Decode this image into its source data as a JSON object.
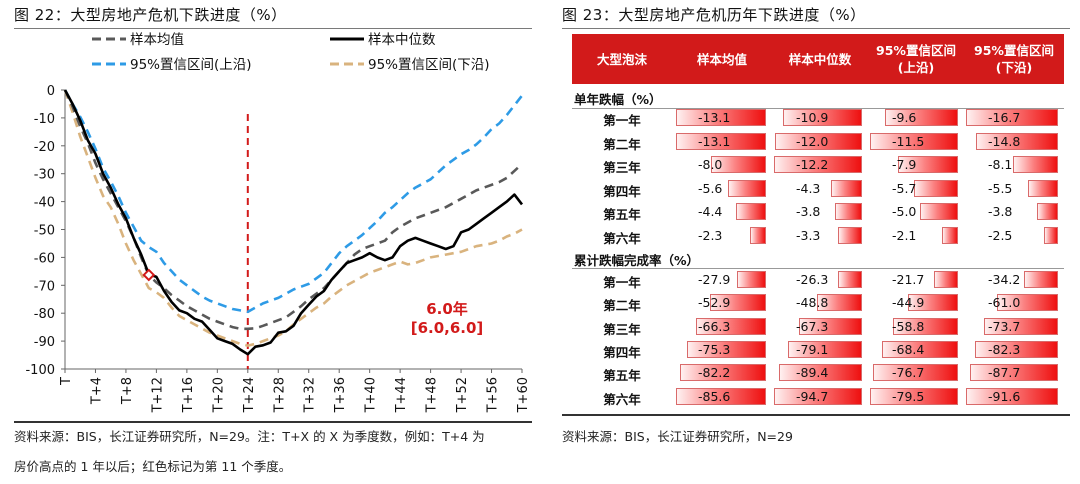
{
  "left": {
    "title": "图 22：大型房地产危机下跌进度（%）",
    "source_line1": "资料来源：BIS，长江证券研究所，N=29。注：T+X 的 X 为季度数，例如：T+4 为",
    "source_line2": "房价高点的 1 年以后；红色标记为第 11 个季度。",
    "annotation_line1": "6.0年",
    "annotation_line2": "[6.0,6.0]"
  },
  "chart_data": {
    "type": "line",
    "title": "大型房地产危机下跌进度（%）",
    "xlabel": "",
    "ylabel": "",
    "xlim": [
      0,
      60
    ],
    "ylim": [
      -100,
      0
    ],
    "yticks": [
      0,
      -10,
      -20,
      -30,
      -40,
      -50,
      -60,
      -70,
      -80,
      -90,
      -100
    ],
    "xtick_labels": [
      "T",
      "T+4",
      "T+8",
      "T+12",
      "T+16",
      "T+20",
      "T+24",
      "T+28",
      "T+32",
      "T+36",
      "T+40",
      "T+44",
      "T+48",
      "T+52",
      "T+56",
      "T+60"
    ],
    "xtick_values": [
      0,
      4,
      8,
      12,
      16,
      20,
      24,
      28,
      32,
      36,
      40,
      44,
      48,
      52,
      56,
      60
    ],
    "vline_x": 24,
    "marker": {
      "x": 11,
      "y": -66.3
    },
    "series": [
      {
        "name": "样本均值",
        "style": "dash",
        "color": "#595959",
        "x": [
          0,
          1,
          2,
          3,
          4,
          5,
          6,
          7,
          8,
          9,
          10,
          11,
          12,
          13,
          14,
          15,
          16,
          17,
          18,
          19,
          20,
          21,
          22,
          23,
          24,
          25,
          26,
          27,
          28,
          29,
          30,
          31,
          32,
          33,
          34,
          35,
          36,
          37,
          38,
          39,
          40,
          41,
          42,
          43,
          44,
          45,
          46,
          47,
          48,
          49,
          50,
          51,
          52,
          53,
          54,
          55,
          56,
          57,
          58,
          59,
          60
        ],
        "y": [
          0,
          -6,
          -13.1,
          -19,
          -26.2,
          -32,
          -37,
          -42,
          -47,
          -53,
          -60,
          -66.3,
          -69,
          -71,
          -73.5,
          -75.5,
          -77.5,
          -79,
          -80.5,
          -82,
          -83,
          -84,
          -85,
          -85.6,
          -85.6,
          -85.4,
          -84.5,
          -83.5,
          -82.5,
          -81.5,
          -79.5,
          -77.5,
          -75,
          -73,
          -71,
          -68,
          -65,
          -62,
          -59,
          -57,
          -56,
          -55,
          -54,
          -51,
          -49,
          -47.5,
          -46,
          -45,
          -44,
          -43,
          -42,
          -40.5,
          -39,
          -37.5,
          -36,
          -35,
          -34,
          -33,
          -31.5,
          -29,
          -26.5
        ]
      },
      {
        "name": "样本中位数",
        "style": "solid",
        "color": "#000000",
        "x": [
          0,
          1,
          2,
          3,
          4,
          5,
          6,
          7,
          8,
          9,
          10,
          11,
          12,
          13,
          14,
          15,
          16,
          17,
          18,
          19,
          20,
          21,
          22,
          23,
          24,
          25,
          26,
          27,
          28,
          29,
          30,
          31,
          32,
          33,
          34,
          35,
          36,
          37,
          38,
          39,
          40,
          41,
          42,
          43,
          44,
          45,
          46,
          47,
          48,
          49,
          50,
          51,
          52,
          53,
          54,
          55,
          56,
          57,
          58,
          59,
          60
        ],
        "y": [
          0,
          -5,
          -10.9,
          -18,
          -22.9,
          -30,
          -35,
          -41,
          -46,
          -53,
          -59,
          -66,
          -67,
          -72,
          -76,
          -79,
          -80,
          -82,
          -83,
          -86,
          -89,
          -90,
          -91,
          -93,
          -94.7,
          -92,
          -91.5,
          -90.5,
          -87,
          -86.5,
          -84.5,
          -80,
          -77,
          -74,
          -72,
          -68,
          -65,
          -62,
          -61,
          -60,
          -58.5,
          -60,
          -61,
          -60,
          -56,
          -54,
          -53,
          -54,
          -55,
          -56,
          -57,
          -56,
          -51,
          -50,
          -48,
          -46,
          -44,
          -42,
          -40,
          -37.5,
          -41
        ]
      },
      {
        "name": "95%置信区间(上沿)",
        "style": "dash",
        "color": "#2e9be6",
        "x": [
          0,
          1,
          2,
          3,
          4,
          5,
          6,
          7,
          8,
          9,
          10,
          11,
          12,
          13,
          14,
          15,
          16,
          17,
          18,
          19,
          20,
          21,
          22,
          23,
          24,
          25,
          26,
          27,
          28,
          29,
          30,
          31,
          32,
          33,
          34,
          35,
          36,
          37,
          38,
          39,
          40,
          41,
          42,
          43,
          44,
          45,
          46,
          47,
          48,
          49,
          50,
          51,
          52,
          53,
          54,
          55,
          56,
          57,
          58,
          59,
          60
        ],
        "y": [
          0,
          -5,
          -9.6,
          -15,
          -21.1,
          -28,
          -32.8,
          -38,
          -44,
          -49,
          -54,
          -56.3,
          -58,
          -62,
          -65,
          -68,
          -70,
          -72,
          -74,
          -75.5,
          -76.5,
          -77.5,
          -78.5,
          -79,
          -79.5,
          -78,
          -76.5,
          -75.5,
          -74.5,
          -73,
          -71.5,
          -70.5,
          -69.5,
          -67.5,
          -65.5,
          -62,
          -58.5,
          -56,
          -54,
          -52,
          -49.5,
          -47,
          -44,
          -42,
          -39.5,
          -37,
          -35,
          -33.5,
          -32,
          -29.5,
          -27,
          -25,
          -23,
          -21.5,
          -19.5,
          -17,
          -14,
          -12,
          -9,
          -5.5,
          -2
        ]
      },
      {
        "name": "95%置信区间(下沿)",
        "style": "dash",
        "color": "#d9b37e",
        "x": [
          0,
          1,
          2,
          3,
          4,
          5,
          6,
          7,
          8,
          9,
          10,
          11,
          12,
          13,
          14,
          15,
          16,
          17,
          18,
          19,
          20,
          21,
          22,
          23,
          24,
          25,
          26,
          27,
          28,
          29,
          30,
          31,
          32,
          33,
          34,
          35,
          36,
          37,
          38,
          39,
          40,
          41,
          42,
          43,
          44,
          45,
          46,
          47,
          48,
          49,
          50,
          51,
          52,
          53,
          54,
          55,
          56,
          57,
          58,
          59,
          60
        ],
        "y": [
          0,
          -8,
          -16.7,
          -24,
          -31.5,
          -38,
          -42,
          -48,
          -55,
          -61,
          -66,
          -71,
          -72.5,
          -74.5,
          -78,
          -81,
          -82.5,
          -84,
          -85.5,
          -87,
          -88,
          -89,
          -90,
          -91,
          -91.6,
          -91,
          -90,
          -89,
          -88,
          -86.5,
          -84,
          -82,
          -80,
          -78,
          -76.5,
          -74,
          -72,
          -70,
          -68.5,
          -67,
          -65.5,
          -64.5,
          -63.5,
          -62.5,
          -61.5,
          -62.5,
          -62,
          -61,
          -60,
          -59.5,
          -59,
          -58.5,
          -58,
          -57,
          -56,
          -55.5,
          -55,
          -54,
          -52.5,
          -51.5,
          -50
        ]
      }
    ]
  },
  "right": {
    "title": "图 23：大型房地产危机历年下跌进度（%）",
    "source": "资料来源：BIS，长江证券研究所，N=29",
    "headers": [
      "大型泡沫",
      "样本均值",
      "样本中位数",
      "95%置信区间(上沿)",
      "95%置信区间(下沿)"
    ],
    "section1_label": "单年跌幅（%）",
    "section2_label": "累计跌幅完成率（%）",
    "section1_rows": [
      {
        "label": "第一年",
        "values": [
          "-13.1",
          "-10.9",
          "-9.6",
          "-16.7"
        ]
      },
      {
        "label": "第二年",
        "values": [
          "-13.1",
          "-12.0",
          "-11.5",
          "-14.8"
        ]
      },
      {
        "label": "第三年",
        "values": [
          "-8.0",
          "-12.2",
          "-7.9",
          "-8.1"
        ]
      },
      {
        "label": "第四年",
        "values": [
          "-5.6",
          "-4.3",
          "-5.7",
          "-5.5"
        ]
      },
      {
        "label": "第五年",
        "values": [
          "-4.4",
          "-3.8",
          "-5.0",
          "-3.8"
        ]
      },
      {
        "label": "第六年",
        "values": [
          "-2.3",
          "-3.3",
          "-2.1",
          "-2.5"
        ]
      }
    ],
    "section2_rows": [
      {
        "label": "第一年",
        "values": [
          "-27.9",
          "-26.3",
          "-21.7",
          "-34.2"
        ]
      },
      {
        "label": "第二年",
        "values": [
          "-52.9",
          "-48.8",
          "-44.9",
          "-61.0"
        ]
      },
      {
        "label": "第三年",
        "values": [
          "-66.3",
          "-67.3",
          "-58.8",
          "-73.7"
        ]
      },
      {
        "label": "第四年",
        "values": [
          "-75.3",
          "-79.1",
          "-68.4",
          "-82.3"
        ]
      },
      {
        "label": "第五年",
        "values": [
          "-82.2",
          "-89.4",
          "-76.7",
          "-87.7"
        ]
      },
      {
        "label": "第六年",
        "values": [
          "-85.6",
          "-94.7",
          "-79.5",
          "-91.6"
        ]
      }
    ]
  }
}
